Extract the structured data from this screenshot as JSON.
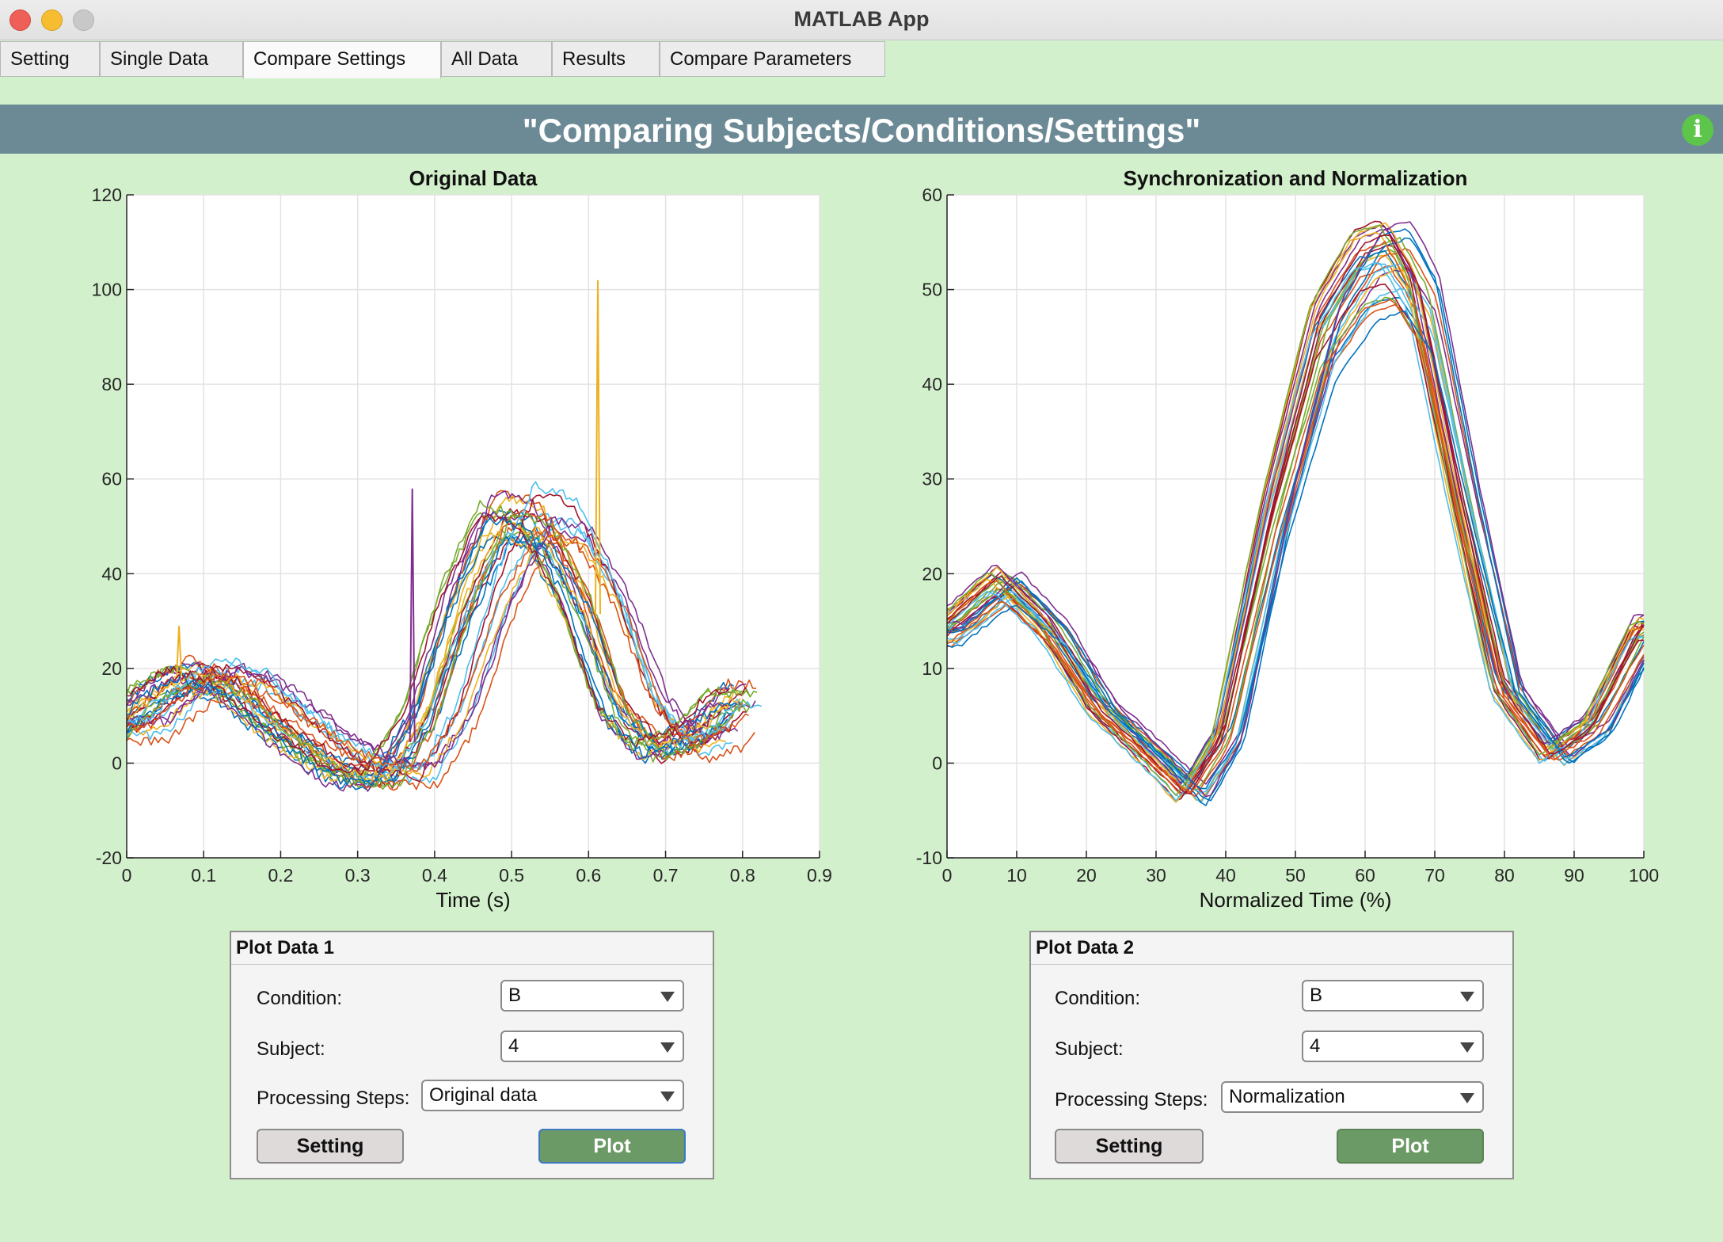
{
  "window": {
    "title": "MATLAB App"
  },
  "tabs": [
    {
      "label": "Setting",
      "active": false
    },
    {
      "label": "Single Data",
      "active": false
    },
    {
      "label": "Compare Settings",
      "active": true
    },
    {
      "label": "All Data",
      "active": false
    },
    {
      "label": "Results",
      "active": false
    },
    {
      "label": "Compare Parameters",
      "active": false
    }
  ],
  "header": {
    "title": "\"Comparing Subjects/Conditions/Settings\"",
    "info_icon": "info-icon"
  },
  "panels": [
    {
      "title": "Plot Data 1",
      "condition_label": "Condition:",
      "condition_value": "B",
      "subject_label": "Subject:",
      "subject_value": "4",
      "steps_label": "Processing Steps:",
      "steps_value": "Original data",
      "setting_label": "Setting",
      "plot_label": "Plot"
    },
    {
      "title": "Plot Data 2",
      "condition_label": "Condition:",
      "condition_value": "B",
      "subject_label": "Subject:",
      "subject_value": "4",
      "steps_label": "Processing Steps:",
      "steps_value": "Normalization",
      "setting_label": "Setting",
      "plot_label": "Plot"
    }
  ],
  "chart_data": [
    {
      "type": "line",
      "title": "Original Data",
      "xlabel": "Time (s)",
      "ylabel": "",
      "xlim": [
        0,
        0.9
      ],
      "ylim": [
        -20,
        120
      ],
      "xticks": [
        0,
        0.1,
        0.2,
        0.3,
        0.4,
        0.5,
        0.6,
        0.7,
        0.8,
        0.9
      ],
      "yticks": [
        -20,
        0,
        20,
        40,
        60,
        80,
        100,
        120
      ],
      "xtick_labels": [
        "0",
        "0.1",
        "0.2",
        "0.3",
        "0.4",
        "0.5",
        "0.6",
        "0.7",
        "0.8",
        "0.9"
      ],
      "ytick_labels": [
        "-20",
        "0",
        "20",
        "40",
        "60",
        "80",
        "100",
        "120"
      ],
      "grid": true,
      "n_series": 30,
      "template": {
        "x": [
          0,
          0.05,
          0.1,
          0.15,
          0.2,
          0.25,
          0.3,
          0.35,
          0.4,
          0.45,
          0.5,
          0.55,
          0.6,
          0.65,
          0.7,
          0.75,
          0.8
        ],
        "y": [
          7,
          15,
          19,
          16,
          9,
          3,
          -2,
          -3,
          10,
          35,
          52,
          50,
          35,
          12,
          3,
          6,
          14
        ]
      },
      "spikes": [
        {
          "x": 0.068,
          "y": 29,
          "color": "#EDB120"
        },
        {
          "x": 0.371,
          "y": 58,
          "color": "#7E2F8E"
        },
        {
          "x": 0.612,
          "y": 102,
          "color": "#EDB120"
        }
      ]
    },
    {
      "type": "line",
      "title": "Synchronization and Normalization",
      "xlabel": "Normalized Time (%)",
      "ylabel": "",
      "xlim": [
        0,
        100
      ],
      "ylim": [
        -10,
        60
      ],
      "xticks": [
        0,
        10,
        20,
        30,
        40,
        50,
        60,
        70,
        80,
        90,
        100
      ],
      "yticks": [
        -10,
        0,
        10,
        20,
        30,
        40,
        50,
        60
      ],
      "xtick_labels": [
        "0",
        "10",
        "20",
        "30",
        "40",
        "50",
        "60",
        "70",
        "80",
        "90",
        "100"
      ],
      "ytick_labels": [
        "-10",
        "0",
        "10",
        "20",
        "30",
        "40",
        "50",
        "60"
      ],
      "grid": true,
      "n_series": 30,
      "template": {
        "x": [
          0,
          8,
          15,
          22,
          28,
          35,
          40,
          47,
          54,
          60,
          64,
          68,
          74,
          80,
          87,
          93,
          100
        ],
        "y": [
          14,
          19,
          14,
          6,
          2,
          -3,
          3,
          26,
          45,
          52,
          53,
          48,
          27,
          8,
          1,
          4,
          14
        ]
      }
    }
  ],
  "series_colors": [
    "#0072BD",
    "#D95319",
    "#EDB120",
    "#7E2F8E",
    "#77AC30",
    "#4DBEEE",
    "#A2142F"
  ]
}
